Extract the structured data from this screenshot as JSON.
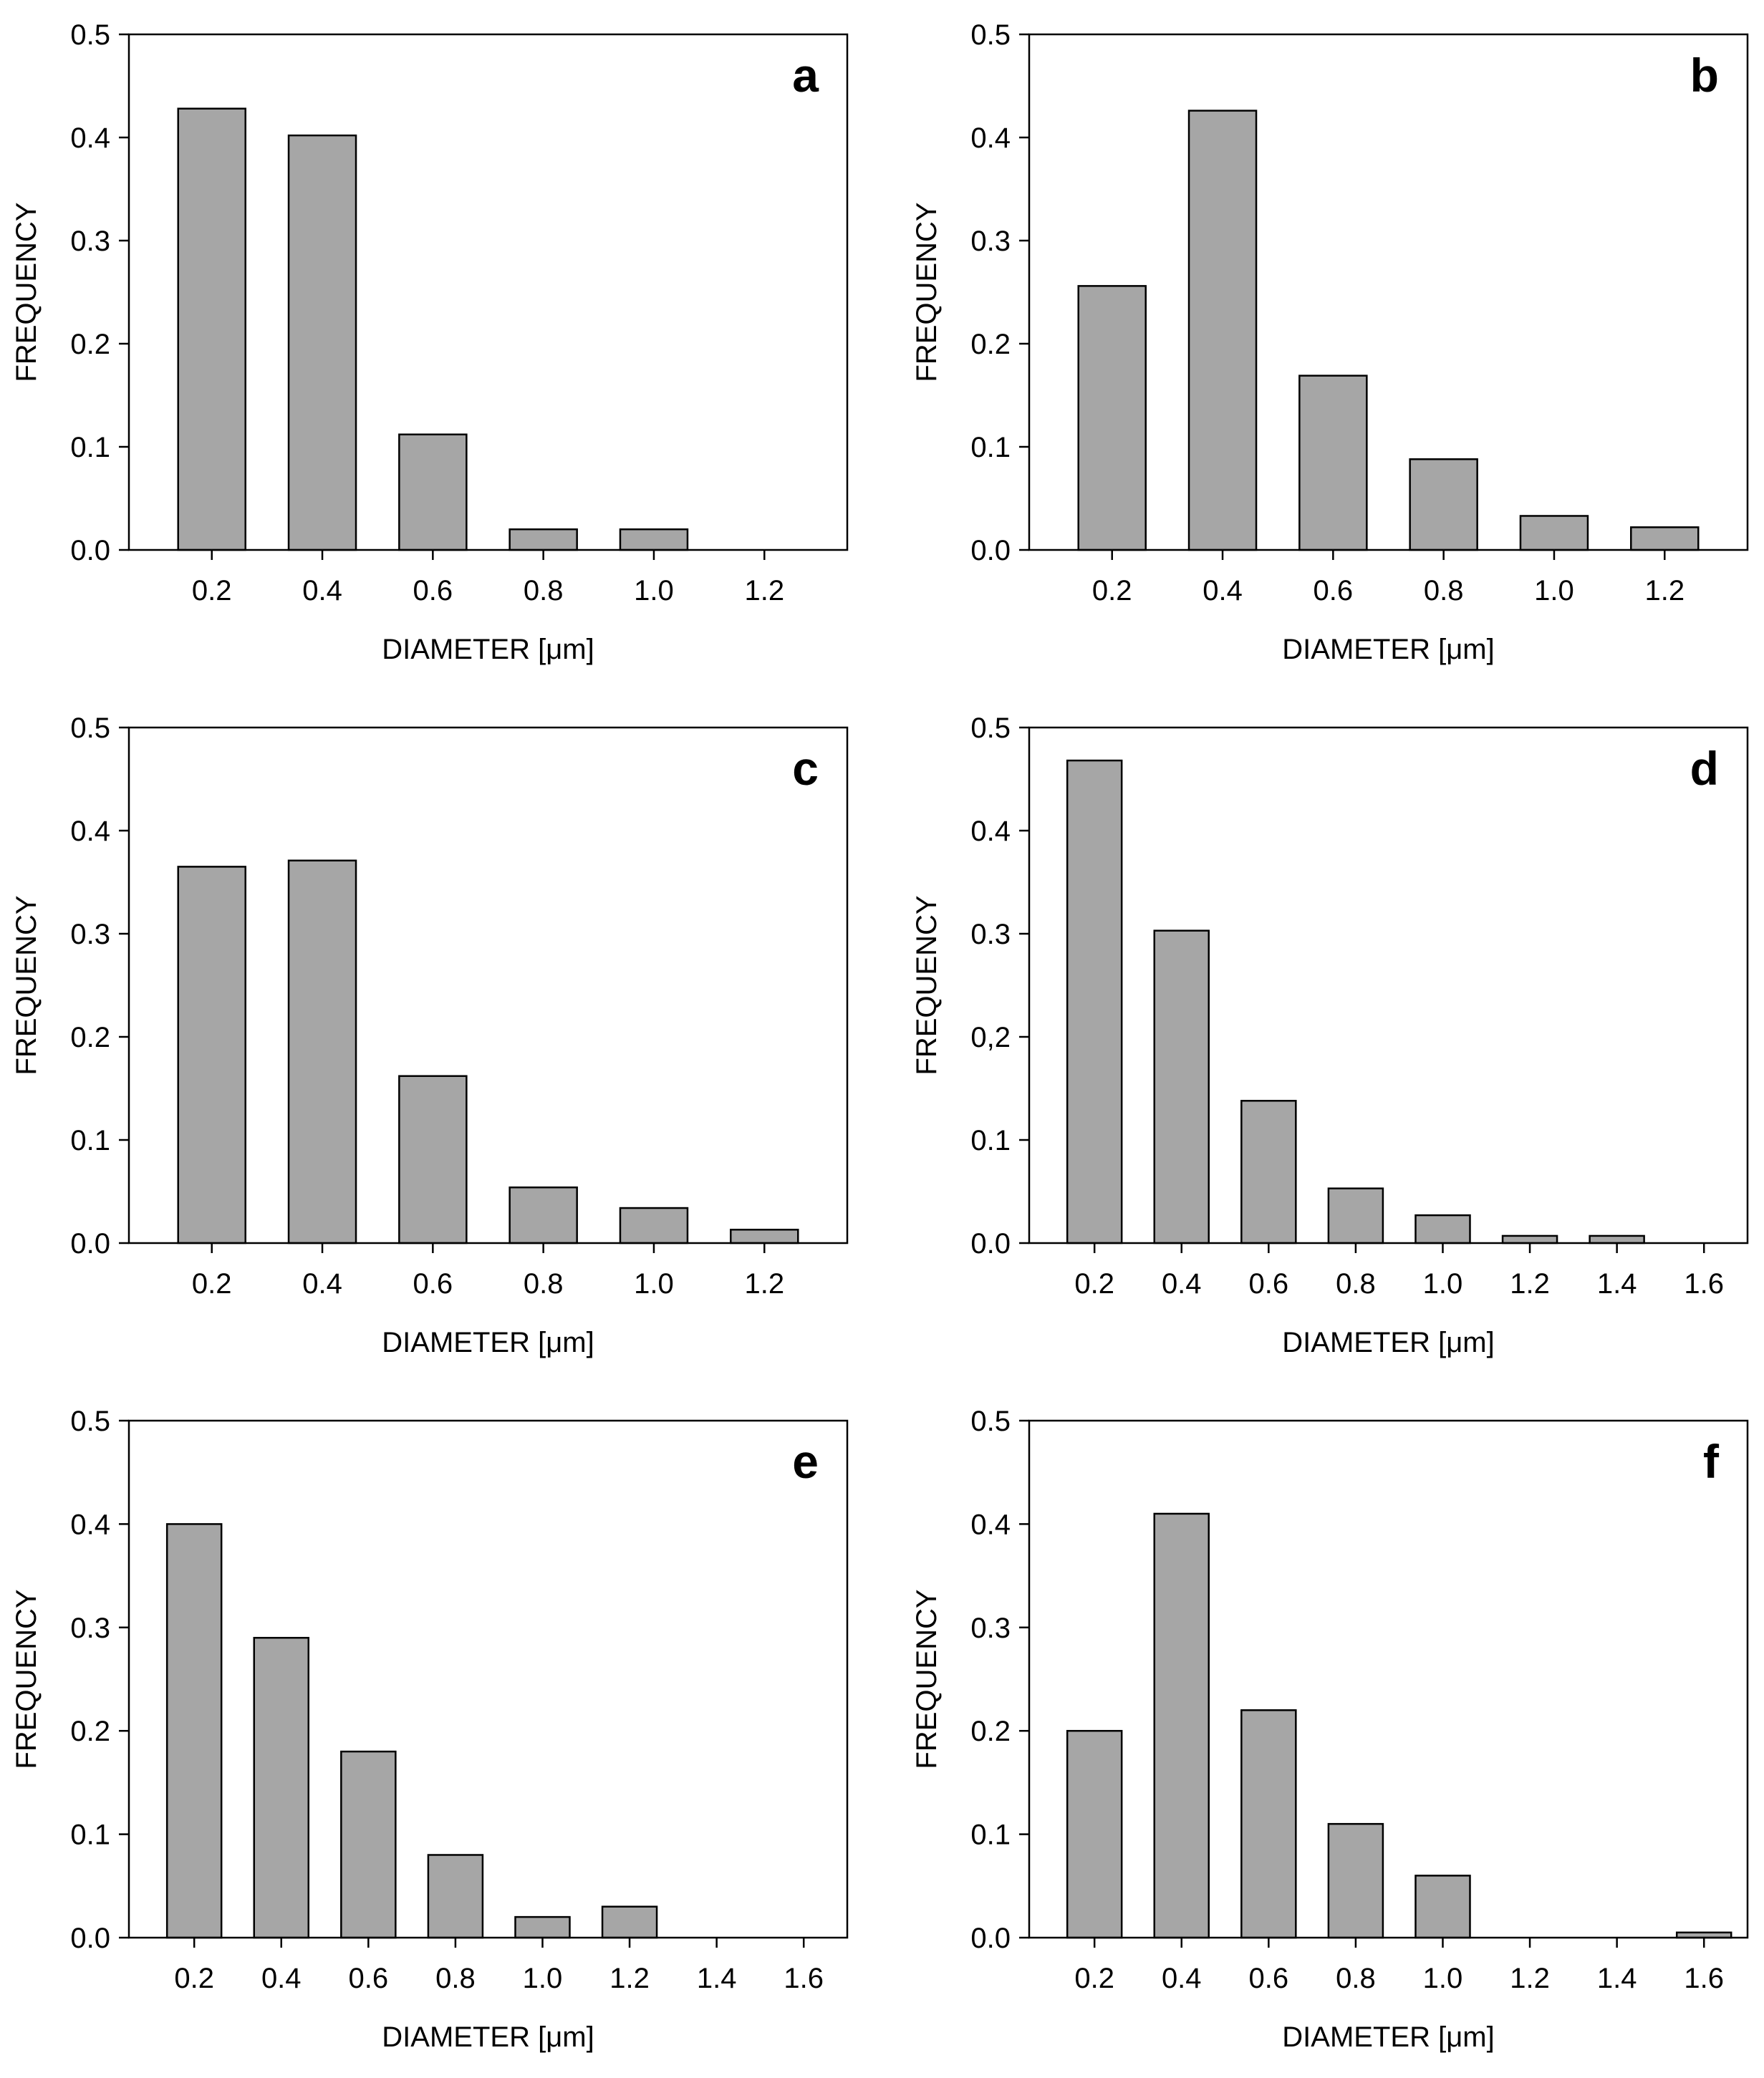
{
  "chart_data": [
    {
      "type": "bar",
      "panel_label": "a",
      "xlabel": "DIAMETER [μm]",
      "ylabel": "FREQUENCY",
      "ylim": [
        0,
        0.5
      ],
      "yticks": [
        "0.0",
        "0.1",
        "0.2",
        "0.3",
        "0.4",
        "0.5"
      ],
      "categories": [
        "0.2",
        "0.4",
        "0.6",
        "0.8",
        "1.0",
        "1.2"
      ],
      "values": [
        0.428,
        0.402,
        0.112,
        0.02,
        0.02,
        0
      ],
      "bar_color": "#a6a6a6"
    },
    {
      "type": "bar",
      "panel_label": "b",
      "xlabel": "DIAMETER [μm]",
      "ylabel": "FREQUENCY",
      "ylim": [
        0,
        0.5
      ],
      "yticks": [
        "0.0",
        "0.1",
        "0.2",
        "0.3",
        "0.4",
        "0.5"
      ],
      "categories": [
        "0.2",
        "0.4",
        "0.6",
        "0.8",
        "1.0",
        "1.2"
      ],
      "values": [
        0.256,
        0.426,
        0.169,
        0.088,
        0.033,
        0.022
      ],
      "bar_color": "#a6a6a6"
    },
    {
      "type": "bar",
      "panel_label": "c",
      "xlabel": "DIAMETER [μm]",
      "ylabel": "FREQUENCY",
      "ylim": [
        0,
        0.5
      ],
      "yticks": [
        "0.0",
        "0.1",
        "0.2",
        "0.3",
        "0.4",
        "0.5"
      ],
      "categories": [
        "0.2",
        "0.4",
        "0.6",
        "0.8",
        "1.0",
        "1.2"
      ],
      "values": [
        0.365,
        0.371,
        0.162,
        0.054,
        0.034,
        0.013
      ],
      "bar_color": "#a6a6a6"
    },
    {
      "type": "bar",
      "panel_label": "d",
      "xlabel": "DIAMETER [μm]",
      "ylabel": "FREQUENCY",
      "ylim": [
        0,
        0.5
      ],
      "yticks": [
        "0.0",
        "0.1",
        "0,2",
        "0.3",
        "0.4",
        "0.5"
      ],
      "categories": [
        "0.2",
        "0.4",
        "0.6",
        "0.8",
        "1.0",
        "1.2",
        "1.4",
        "1.6"
      ],
      "values": [
        0.468,
        0.303,
        0.138,
        0.053,
        0.027,
        0.007,
        0.007,
        0
      ],
      "bar_color": "#a6a6a6"
    },
    {
      "type": "bar",
      "panel_label": "e",
      "xlabel": "DIAMETER [μm]",
      "ylabel": "FREQUENCY",
      "ylim": [
        0,
        0.5
      ],
      "yticks": [
        "0.0",
        "0.1",
        "0.2",
        "0.3",
        "0.4",
        "0.5"
      ],
      "categories": [
        "0.2",
        "0.4",
        "0.6",
        "0.8",
        "1.0",
        "1.2",
        "1.4",
        "1.6"
      ],
      "values": [
        0.4,
        0.29,
        0.18,
        0.08,
        0.02,
        0.03,
        0,
        0
      ],
      "bar_color": "#a6a6a6"
    },
    {
      "type": "bar",
      "panel_label": "f",
      "xlabel": "DIAMETER [μm]",
      "ylabel": "FREQUENCY",
      "ylim": [
        0,
        0.5
      ],
      "yticks": [
        "0.0",
        "0.1",
        "0.2",
        "0.3",
        "0.4",
        "0.5"
      ],
      "categories": [
        "0.2",
        "0.4",
        "0.6",
        "0.8",
        "1.0",
        "1.2",
        "1.4",
        "1.6"
      ],
      "values": [
        0.2,
        0.41,
        0.22,
        0.11,
        0.06,
        0,
        0,
        0.005
      ],
      "bar_color": "#a6a6a6"
    }
  ]
}
